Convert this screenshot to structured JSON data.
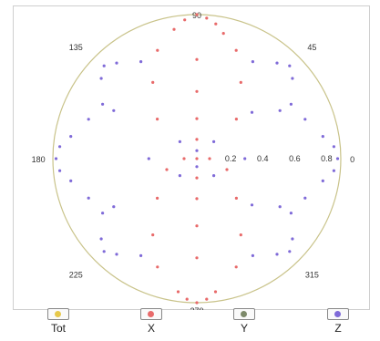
{
  "chart_data": {
    "type": "scatter",
    "subtype": "polar",
    "grid": false,
    "legend_placement": "bottom",
    "angle_labels": [
      "90",
      "45",
      "0",
      "315",
      "270",
      "225",
      "180",
      "135"
    ],
    "radius_labels": [
      "0.2",
      "0.4",
      "0.6",
      "0.8"
    ],
    "rlim": [
      0,
      0.9
    ],
    "series": [
      {
        "name": "Tot",
        "color": "#e6c84a",
        "points": []
      },
      {
        "name": "X",
        "color": "#e86a6a",
        "points": [
          {
            "angle": 0,
            "r": 0.0
          },
          {
            "angle": 90,
            "r": 0.9
          },
          {
            "angle": 86,
            "r": 0.88
          },
          {
            "angle": 82,
            "r": 0.85
          },
          {
            "angle": 78,
            "r": 0.8
          },
          {
            "angle": 95,
            "r": 0.87
          },
          {
            "angle": 100,
            "r": 0.82
          },
          {
            "angle": 90,
            "r": 0.62
          },
          {
            "angle": 90,
            "r": 0.42
          },
          {
            "angle": 90,
            "r": 0.25
          },
          {
            "angle": 90,
            "r": 0.12
          },
          {
            "angle": 70,
            "r": 0.72
          },
          {
            "angle": 110,
            "r": 0.72
          },
          {
            "angle": 60,
            "r": 0.55
          },
          {
            "angle": 120,
            "r": 0.55
          },
          {
            "angle": 45,
            "r": 0.35
          },
          {
            "angle": 135,
            "r": 0.35
          },
          {
            "angle": 270,
            "r": 0.9
          },
          {
            "angle": 266,
            "r": 0.88
          },
          {
            "angle": 274,
            "r": 0.88
          },
          {
            "angle": 278,
            "r": 0.84
          },
          {
            "angle": 262,
            "r": 0.84
          },
          {
            "angle": 270,
            "r": 0.62
          },
          {
            "angle": 270,
            "r": 0.42
          },
          {
            "angle": 270,
            "r": 0.25
          },
          {
            "angle": 270,
            "r": 0.12
          },
          {
            "angle": 250,
            "r": 0.72
          },
          {
            "angle": 290,
            "r": 0.72
          },
          {
            "angle": 240,
            "r": 0.55
          },
          {
            "angle": 300,
            "r": 0.55
          },
          {
            "angle": 225,
            "r": 0.35
          },
          {
            "angle": 315,
            "r": 0.35
          },
          {
            "angle": 180,
            "r": 0.08
          },
          {
            "angle": 0,
            "r": 0.08
          },
          {
            "angle": 200,
            "r": 0.2
          },
          {
            "angle": 340,
            "r": 0.2
          }
        ]
      },
      {
        "name": "Y",
        "color": "#7d8a6a",
        "points": []
      },
      {
        "name": "Z",
        "color": "#7f6ad8",
        "points": [
          {
            "angle": 0,
            "r": 0.88
          },
          {
            "angle": 5,
            "r": 0.86
          },
          {
            "angle": 355,
            "r": 0.86
          },
          {
            "angle": 10,
            "r": 0.8
          },
          {
            "angle": 350,
            "r": 0.8
          },
          {
            "angle": 20,
            "r": 0.72
          },
          {
            "angle": 340,
            "r": 0.72
          },
          {
            "angle": 30,
            "r": 0.6
          },
          {
            "angle": 330,
            "r": 0.6
          },
          {
            "angle": 40,
            "r": 0.45
          },
          {
            "angle": 320,
            "r": 0.45
          },
          {
            "angle": 45,
            "r": 0.82
          },
          {
            "angle": 50,
            "r": 0.78
          },
          {
            "angle": 40,
            "r": 0.78
          },
          {
            "angle": 60,
            "r": 0.7
          },
          {
            "angle": 30,
            "r": 0.68
          },
          {
            "angle": 135,
            "r": 0.82
          },
          {
            "angle": 130,
            "r": 0.78
          },
          {
            "angle": 140,
            "r": 0.78
          },
          {
            "angle": 120,
            "r": 0.7
          },
          {
            "angle": 150,
            "r": 0.68
          },
          {
            "angle": 180,
            "r": 0.88
          },
          {
            "angle": 175,
            "r": 0.86
          },
          {
            "angle": 185,
            "r": 0.86
          },
          {
            "angle": 170,
            "r": 0.8
          },
          {
            "angle": 190,
            "r": 0.8
          },
          {
            "angle": 160,
            "r": 0.72
          },
          {
            "angle": 200,
            "r": 0.72
          },
          {
            "angle": 150,
            "r": 0.6
          },
          {
            "angle": 210,
            "r": 0.6
          },
          {
            "angle": 225,
            "r": 0.82
          },
          {
            "angle": 230,
            "r": 0.78
          },
          {
            "angle": 220,
            "r": 0.78
          },
          {
            "angle": 240,
            "r": 0.7
          },
          {
            "angle": 210,
            "r": 0.68
          },
          {
            "angle": 315,
            "r": 0.82
          },
          {
            "angle": 310,
            "r": 0.78
          },
          {
            "angle": 320,
            "r": 0.78
          },
          {
            "angle": 300,
            "r": 0.7
          },
          {
            "angle": 330,
            "r": 0.68
          },
          {
            "angle": 90,
            "r": 0.05
          },
          {
            "angle": 270,
            "r": 0.05
          },
          {
            "angle": 45,
            "r": 0.15
          },
          {
            "angle": 135,
            "r": 0.15
          },
          {
            "angle": 225,
            "r": 0.15
          },
          {
            "angle": 315,
            "r": 0.15
          },
          {
            "angle": 0,
            "r": 0.3
          },
          {
            "angle": 180,
            "r": 0.3
          }
        ]
      }
    ]
  },
  "legend": [
    {
      "label": "Tot",
      "color": "#e6c84a"
    },
    {
      "label": "X",
      "color": "#e86a6a"
    },
    {
      "label": "Y",
      "color": "#7d8a6a"
    },
    {
      "label": "Z",
      "color": "#7f6ad8"
    }
  ]
}
